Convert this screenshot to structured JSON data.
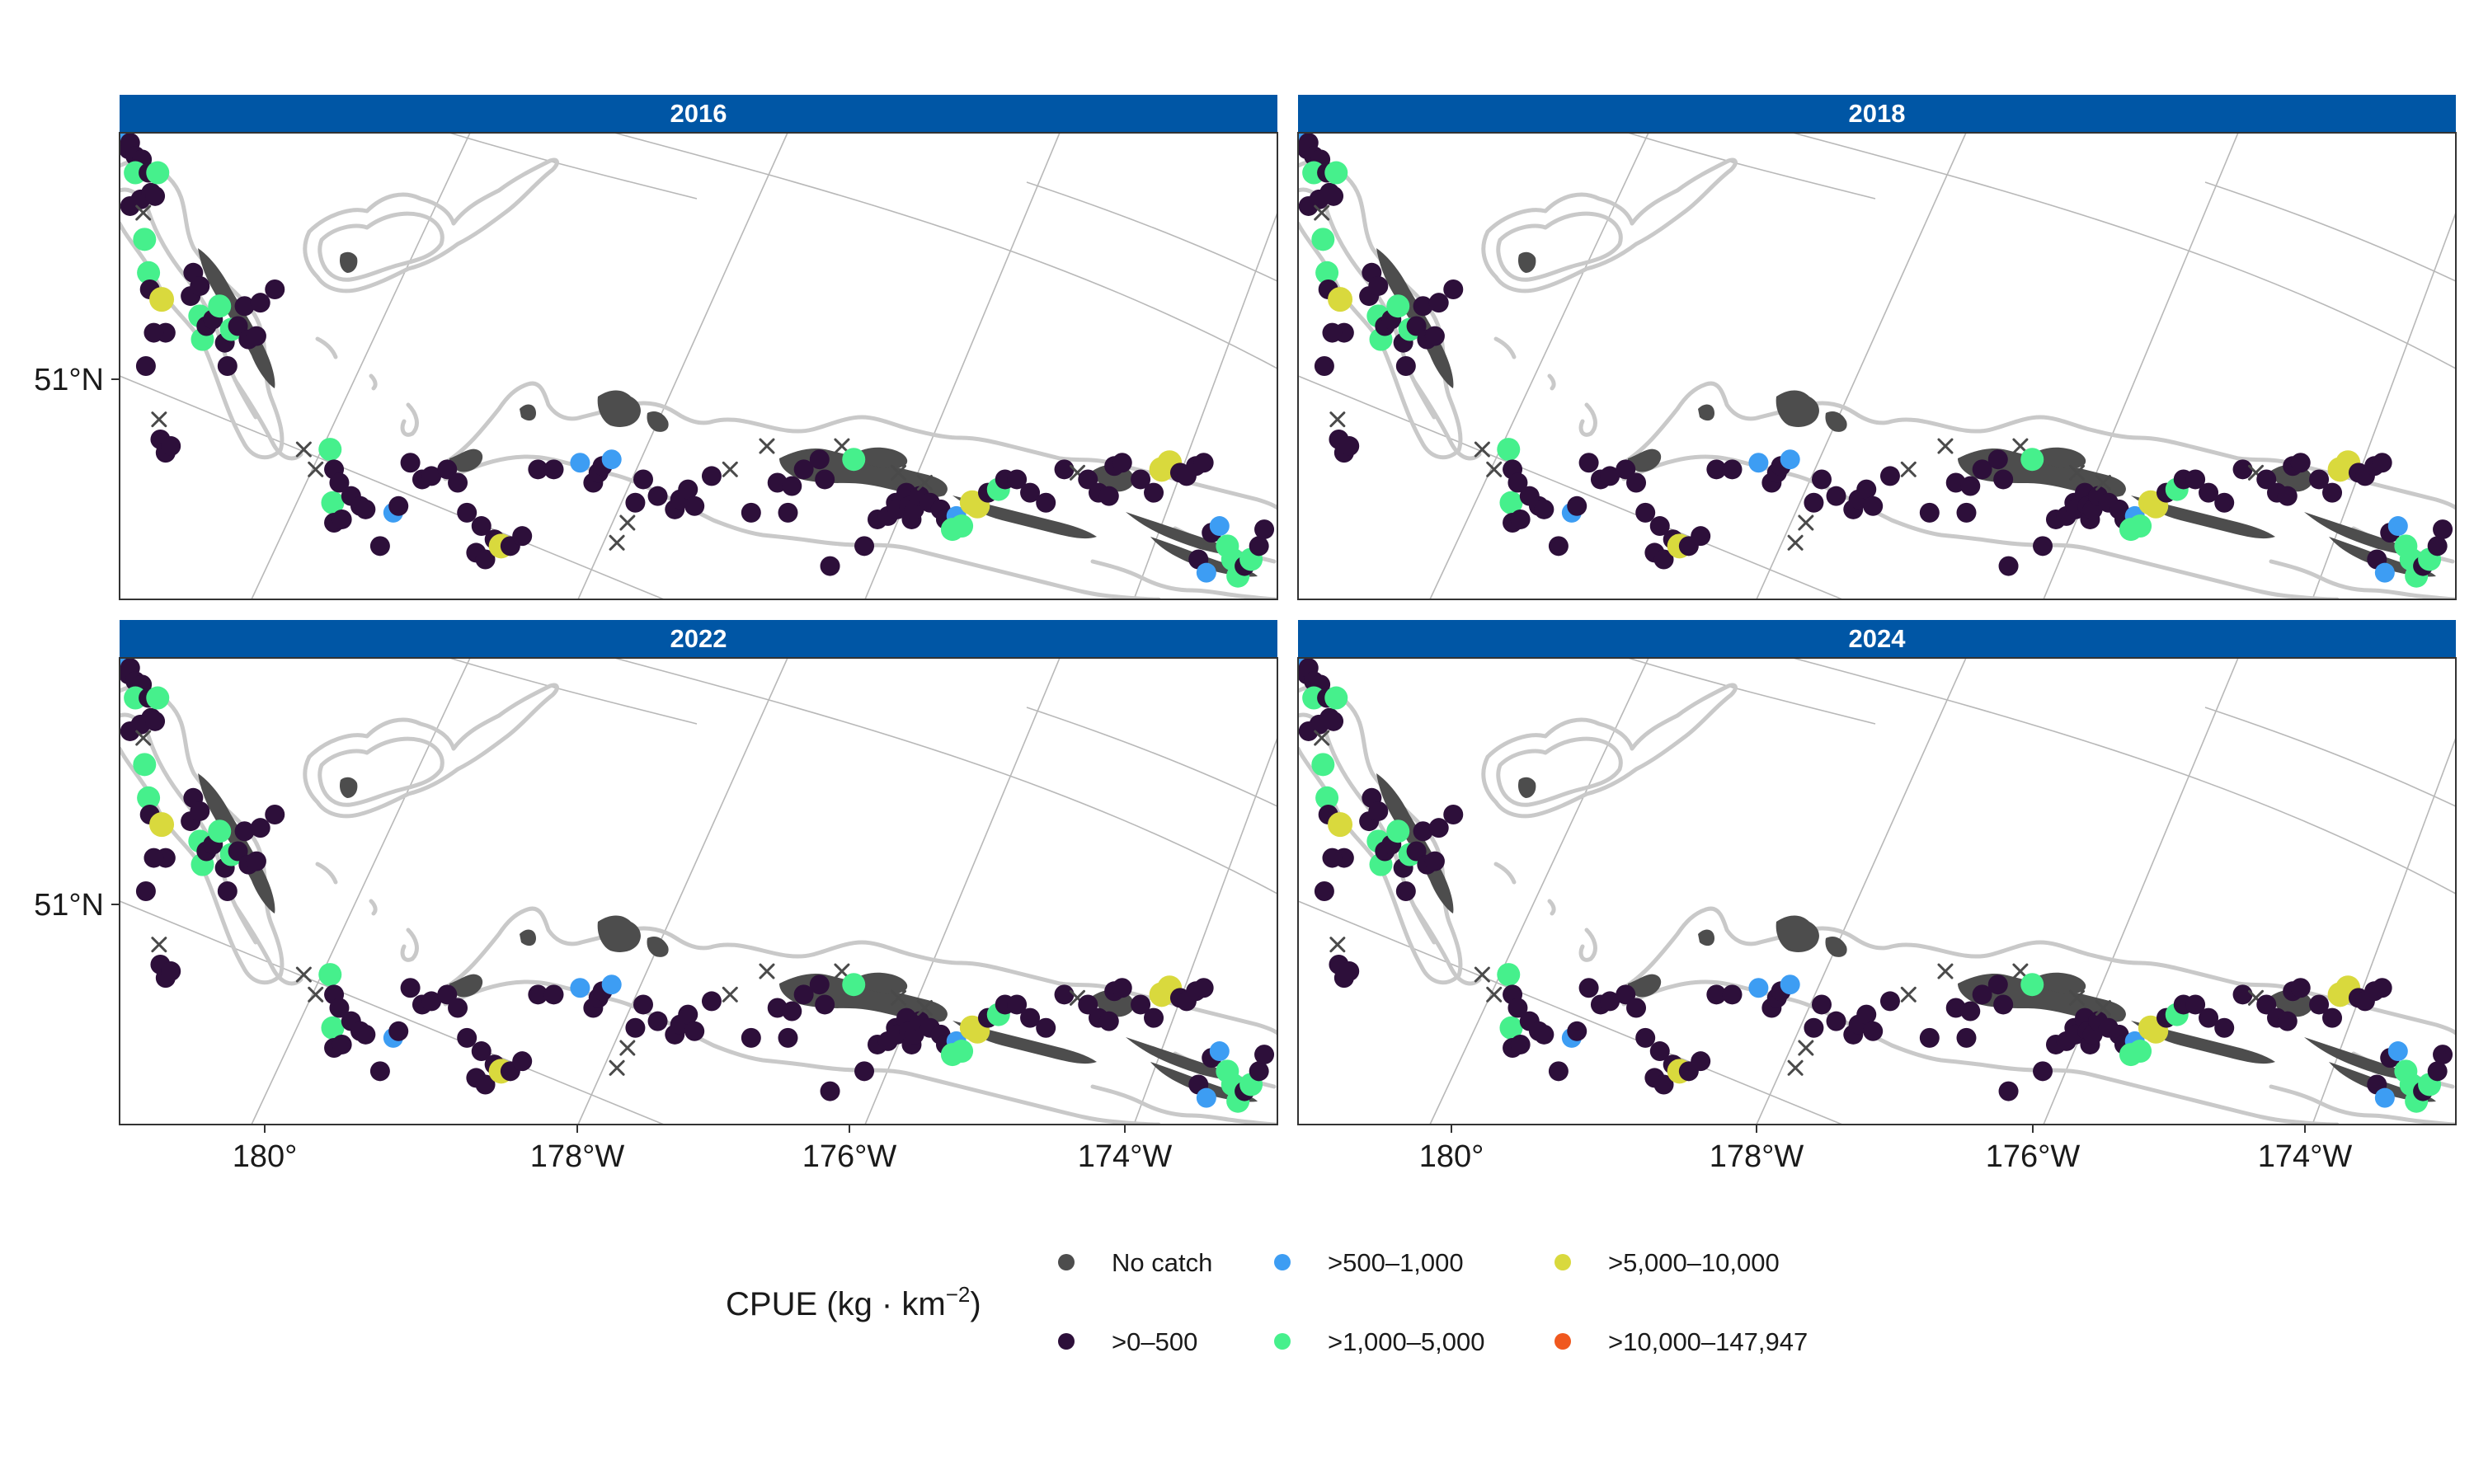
{
  "panels": [
    {
      "title": "2016",
      "stations": [
        [
          10,
          5,
          1
        ],
        [
          35,
          25,
          0
        ],
        [
          40,
          15,
          0
        ],
        [
          60,
          35,
          0
        ],
        [
          85,
          40,
          0
        ],
        [
          60,
          60,
          2
        ],
        [
          80,
          100,
          0
        ],
        [
          40,
          110,
          0
        ],
        [
          90,
          120,
          -1
        ],
        [
          120,
          90,
          0
        ],
        [
          110,
          60,
          0
        ],
        [
          145,
          60,
          2
        ],
        [
          135,
          95,
          0
        ],
        [
          95,
          160,
          2
        ],
        [
          110,
          210,
          2
        ],
        [
          115,
          235,
          0
        ],
        [
          160,
          250,
          3
        ],
        [
          175,
          300,
          0
        ],
        [
          130,
          300,
          0
        ],
        [
          100,
          350,
          0
        ],
        [
          150,
          430,
          -1
        ],
        [
          155,
          460,
          0
        ],
        [
          175,
          480,
          0
        ],
        [
          195,
          470,
          0
        ],
        [
          270,
          245,
          0
        ],
        [
          280,
          210,
          0
        ],
        [
          305,
          230,
          0
        ],
        [
          305,
          275,
          2
        ],
        [
          315,
          310,
          2
        ],
        [
          330,
          290,
          0
        ],
        [
          355,
          280,
          0
        ],
        [
          380,
          260,
          2
        ],
        [
          400,
          315,
          0
        ],
        [
          410,
          350,
          0
        ],
        [
          425,
          295,
          2
        ],
        [
          450,
          290,
          0
        ],
        [
          475,
          260,
          0
        ],
        [
          490,
          310,
          0
        ],
        [
          520,
          305,
          0
        ],
        [
          535,
          255,
          0
        ],
        [
          590,
          235,
          0
        ],
        [
          700,
          475,
          -1
        ],
        [
          745,
          505,
          -1
        ],
        [
          800,
          475,
          2
        ],
        [
          815,
          505,
          0
        ],
        [
          810,
          555,
          2
        ],
        [
          815,
          585,
          0
        ],
        [
          835,
          525,
          0
        ],
        [
          845,
          580,
          0
        ],
        [
          880,
          545,
          0
        ],
        [
          915,
          560,
          0
        ],
        [
          935,
          565,
          0
        ],
        [
          990,
          620,
          0
        ],
        [
          1040,
          570,
          1
        ],
        [
          1060,
          560,
          0
        ],
        [
          1105,
          495,
          0
        ],
        [
          1150,
          520,
          0
        ],
        [
          1185,
          515,
          0
        ],
        [
          1245,
          505,
          0
        ],
        [
          1285,
          525,
          0
        ],
        [
          1320,
          570,
          0
        ],
        [
          1375,
          590,
          0
        ],
        [
          1355,
          630,
          0
        ],
        [
          1390,
          640,
          0
        ],
        [
          1425,
          610,
          0
        ],
        [
          1450,
          620,
          3
        ],
        [
          1485,
          620,
          0
        ],
        [
          1530,
          605,
          0
        ],
        [
          1590,
          505,
          0
        ],
        [
          1650,
          505,
          0
        ],
        [
          1750,
          495,
          1
        ],
        [
          1800,
          525,
          0
        ],
        [
          1820,
          510,
          0
        ],
        [
          1835,
          500,
          0
        ],
        [
          1870,
          490,
          1
        ],
        [
          1890,
          615,
          -1
        ],
        [
          1930,
          585,
          -1
        ],
        [
          1960,
          555,
          0
        ],
        [
          1990,
          520,
          0
        ],
        [
          2045,
          545,
          0
        ],
        [
          2110,
          565,
          0
        ],
        [
          2130,
          550,
          0
        ],
        [
          2160,
          535,
          0
        ],
        [
          2185,
          560,
          0
        ],
        [
          2250,
          515,
          0
        ],
        [
          2320,
          505,
          -1
        ],
        [
          2400,
          570,
          0
        ],
        [
          2460,
          470,
          -1
        ],
        [
          2500,
          525,
          0
        ],
        [
          2540,
          570,
          0
        ],
        [
          2555,
          530,
          0
        ],
        [
          2600,
          505,
          0
        ],
        [
          2660,
          490,
          0
        ],
        [
          2700,
          650,
          0
        ],
        [
          2680,
          520,
          0
        ],
        [
          2745,
          470,
          -1
        ],
        [
          2790,
          490,
          2
        ],
        [
          2830,
          620,
          0
        ],
        [
          2880,
          580,
          0
        ],
        [
          2920,
          575,
          0
        ],
        [
          2950,
          555,
          0
        ],
        [
          2955,
          565,
          0
        ],
        [
          2960,
          510,
          -1
        ],
        [
          2990,
          540,
          0
        ],
        [
          3000,
          560,
          0
        ],
        [
          3010,
          580,
          0
        ],
        [
          3020,
          565,
          0
        ],
        [
          3040,
          545,
          0
        ],
        [
          3060,
          525,
          -1
        ],
        [
          3080,
          555,
          0
        ],
        [
          3120,
          565,
          0
        ],
        [
          3140,
          580,
          0
        ],
        [
          3180,
          575,
          1
        ],
        [
          3165,
          595,
          2
        ],
        [
          3200,
          590,
          2
        ],
        [
          3240,
          555,
          3
        ],
        [
          3260,
          560,
          3
        ],
        [
          3300,
          540,
          0
        ],
        [
          3340,
          535,
          2
        ],
        [
          3365,
          520,
          0
        ],
        [
          3410,
          520,
          0
        ],
        [
          3460,
          540,
          0
        ],
        [
          3520,
          555,
          0
        ],
        [
          3590,
          505,
          0
        ],
        [
          3640,
          510,
          -1
        ],
        [
          3680,
          520,
          0
        ],
        [
          3720,
          540,
          0
        ],
        [
          3760,
          545,
          0
        ],
        [
          3780,
          500,
          0
        ],
        [
          3810,
          495,
          0
        ],
        [
          3880,
          520,
          0
        ],
        [
          3930,
          540,
          0
        ],
        [
          3960,
          505,
          3
        ],
        [
          3990,
          495,
          3
        ],
        [
          4030,
          510,
          0
        ],
        [
          4055,
          515,
          0
        ],
        [
          4090,
          500,
          0
        ],
        [
          4120,
          495,
          0
        ],
        [
          4150,
          600,
          0
        ],
        [
          4180,
          590,
          1
        ],
        [
          4210,
          620,
          2
        ],
        [
          4230,
          640,
          2
        ],
        [
          4250,
          665,
          2
        ],
        [
          4275,
          650,
          0
        ],
        [
          4300,
          640,
          2
        ],
        [
          4330,
          620,
          0
        ],
        [
          4350,
          595,
          0
        ],
        [
          4100,
          640,
          0
        ],
        [
          4130,
          660,
          1
        ]
      ]
    },
    {
      "title": "2018",
      "stations": []
    },
    {
      "title": "2022",
      "stations": []
    },
    {
      "title": "2024",
      "stations": []
    }
  ],
  "x_axis": {
    "ticks": [
      "180°",
      "178°W",
      "176°W",
      "174°W"
    ]
  },
  "y_axis": {
    "ticks": [
      "51°N"
    ]
  },
  "legend": {
    "title": "CPUE (kg · km⁻²)",
    "title_base": "CPUE (kg · km",
    "title_sup": "−2",
    "title_close": ")",
    "items": [
      {
        "label": "No catch",
        "color": "#4d4d4d"
      },
      {
        "label": ">0–500",
        "color": "#2d0f3a"
      },
      {
        "label": ">500–1,000",
        "color": "#3d9df3"
      },
      {
        "label": ">1,000–5,000",
        "color": "#46f08c"
      },
      {
        "label": ">5,000–10,000",
        "color": "#d9d93d"
      },
      {
        "label": ">10,000–147,947",
        "color": "#f0581e"
      }
    ]
  },
  "colors": {
    "strip": "#0056a5",
    "land": "#4d4d4d",
    "contour": "#c9c9c9",
    "graticule": "#b8b8b8",
    "no_catch_marker": "#4a4a4a"
  }
}
